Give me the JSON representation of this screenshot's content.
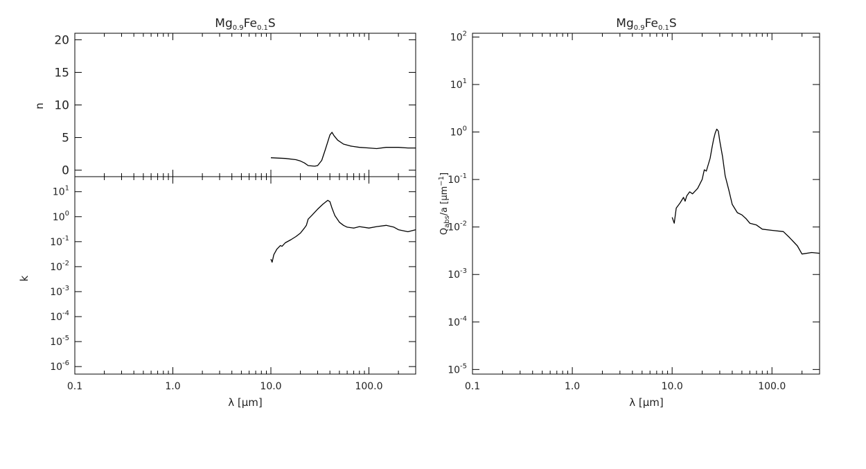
{
  "chart_data": [
    {
      "type": "line",
      "panel": "n",
      "title": "Mg0.9Fe0.1S",
      "title_parts": {
        "base1": "Mg",
        "sub1": "0.9",
        "base2": "Fe",
        "sub2": "0.1",
        "base3": "S"
      },
      "ylabel": "n",
      "xscale": "log",
      "xlim": [
        0.1,
        300
      ],
      "ylim": [
        -1,
        21
      ],
      "yticks": [
        0,
        5,
        10,
        15,
        20
      ],
      "ytick_labels": [
        "0",
        "5",
        "10",
        "15",
        "20"
      ],
      "x": [
        10,
        14,
        18,
        20,
        22,
        24,
        26,
        28,
        30,
        33,
        36,
        40,
        42,
        44,
        48,
        55,
        65,
        80,
        100,
        120,
        150,
        200,
        250,
        300
      ],
      "y": [
        1.9,
        1.8,
        1.6,
        1.4,
        1.1,
        0.7,
        0.65,
        0.6,
        0.7,
        1.5,
        3.2,
        5.4,
        5.8,
        5.3,
        4.6,
        4.0,
        3.7,
        3.5,
        3.4,
        3.3,
        3.5,
        3.5,
        3.4,
        3.4
      ]
    },
    {
      "type": "line",
      "panel": "k",
      "ylabel": "k",
      "xlabel": "λ [μm]",
      "xscale": "log",
      "yscale": "log",
      "xlim": [
        0.1,
        300
      ],
      "ylim": [
        5e-07,
        40
      ],
      "xticks": [
        0.1,
        1,
        10,
        100
      ],
      "xtick_labels": [
        "0.1",
        "1.0",
        "10.0",
        "100.0"
      ],
      "ytick_exponents": [
        "-6",
        "-5",
        "-4",
        "-3",
        "-2",
        "-1",
        "0",
        "1"
      ],
      "x": [
        10,
        10.3,
        10.7,
        11.5,
        12.5,
        13,
        14,
        16,
        18,
        20,
        22,
        23,
        24,
        26,
        30,
        34,
        38,
        40,
        42,
        45,
        50,
        55,
        60,
        70,
        80,
        100,
        120,
        150,
        180,
        200,
        250,
        300
      ],
      "y": [
        0.02,
        0.015,
        0.03,
        0.05,
        0.07,
        0.065,
        0.09,
        0.12,
        0.16,
        0.22,
        0.35,
        0.45,
        0.8,
        1.1,
        2.0,
        3.2,
        4.5,
        4.0,
        2.2,
        1.1,
        0.6,
        0.45,
        0.38,
        0.35,
        0.4,
        0.35,
        0.4,
        0.45,
        0.38,
        0.3,
        0.25,
        0.3
      ]
    },
    {
      "type": "line",
      "panel": "qabs",
      "title": "Mg0.9Fe0.1S",
      "title_parts": {
        "base1": "Mg",
        "sub1": "0.9",
        "base2": "Fe",
        "sub2": "0.1",
        "base3": "S"
      },
      "ylabel": "Qabs/a [μm-1]",
      "ylabel_parts": {
        "q": "Q",
        "sub": "abs",
        "rest": "/a [",
        "mu": "μ",
        "m": "m",
        "sup": "−1",
        "close": "]"
      },
      "xlabel": "λ [μm]",
      "xscale": "log",
      "yscale": "log",
      "xlim": [
        0.1,
        300
      ],
      "ylim": [
        8e-06,
        120
      ],
      "xticks": [
        0.1,
        1,
        10,
        100
      ],
      "xtick_labels": [
        "0.1",
        "1.0",
        "10.0",
        "100.0"
      ],
      "ytick_exponents": [
        "-5",
        "-4",
        "-3",
        "-2",
        "-1",
        "0",
        "1",
        "2"
      ],
      "x": [
        10,
        10.5,
        11,
        12,
        13,
        13.5,
        14,
        15,
        16,
        18,
        20,
        21,
        22,
        24,
        25,
        26,
        27,
        28,
        29,
        30,
        32,
        34,
        37,
        40,
        45,
        50,
        55,
        60,
        70,
        80,
        100,
        130,
        150,
        180,
        200,
        250,
        300
      ],
      "y": [
        0.016,
        0.012,
        0.025,
        0.032,
        0.042,
        0.035,
        0.045,
        0.055,
        0.05,
        0.065,
        0.1,
        0.16,
        0.15,
        0.28,
        0.45,
        0.7,
        0.95,
        1.15,
        1.05,
        0.65,
        0.3,
        0.12,
        0.06,
        0.03,
        0.02,
        0.018,
        0.015,
        0.012,
        0.011,
        0.009,
        0.0085,
        0.008,
        0.006,
        0.004,
        0.0027,
        0.0029,
        0.0028
      ]
    }
  ]
}
